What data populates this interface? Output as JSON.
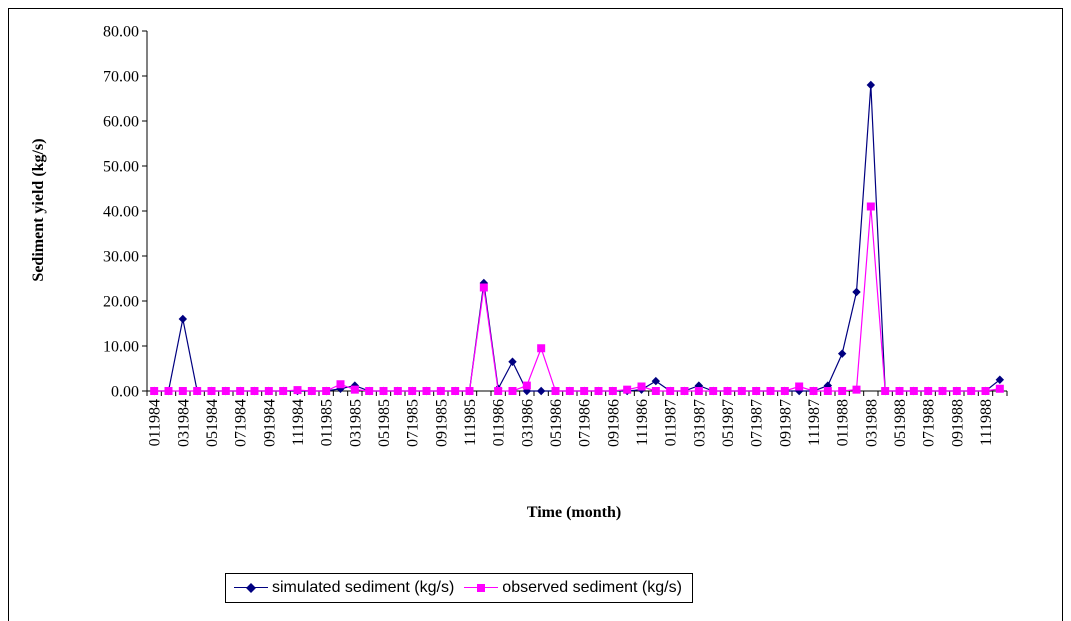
{
  "chart_data": {
    "type": "line",
    "xlabel": "Time (month)",
    "ylabel": "Sediment yield (kg/s)",
    "ylim": [
      0,
      80
    ],
    "yticks": [
      "0.00",
      "10.00",
      "20.00",
      "30.00",
      "40.00",
      "50.00",
      "60.00",
      "70.00",
      "80.00"
    ],
    "grid": false,
    "legend_position": "bottom",
    "x": [
      "011984",
      "021984",
      "031984",
      "041984",
      "051984",
      "061984",
      "071984",
      "081984",
      "091984",
      "101984",
      "111984",
      "121984",
      "011985",
      "021985",
      "031985",
      "041985",
      "051985",
      "061985",
      "071985",
      "081985",
      "091985",
      "101985",
      "111985",
      "121985",
      "011986",
      "021986",
      "031986",
      "041986",
      "051986",
      "061986",
      "071986",
      "081986",
      "091986",
      "101986",
      "111986",
      "121986",
      "011987",
      "021987",
      "031987",
      "041987",
      "051987",
      "061987",
      "071987",
      "081987",
      "091987",
      "101987",
      "111987",
      "121987",
      "011988",
      "021988",
      "031988",
      "041988",
      "051988",
      "061988",
      "071988",
      "081988",
      "091988",
      "101988",
      "111988",
      "121988"
    ],
    "x_tick_labels": [
      "011984",
      "031984",
      "051984",
      "071984",
      "091984",
      "111984",
      "011985",
      "031985",
      "051985",
      "071985",
      "091985",
      "111985",
      "011986",
      "031986",
      "051986",
      "071986",
      "091986",
      "111986",
      "011987",
      "031987",
      "051987",
      "071987",
      "091987",
      "111987",
      "011988",
      "031988",
      "051988",
      "071988",
      "091988",
      "111988"
    ],
    "series": [
      {
        "name": "simulated sediment (kg/s)",
        "color": "#000080",
        "marker": "diamond",
        "values": [
          0,
          0,
          16,
          0,
          0,
          0,
          0,
          0,
          0,
          0,
          0,
          0,
          0,
          0.5,
          1.2,
          0,
          0,
          0,
          0,
          0,
          0,
          0,
          0,
          24,
          0.5,
          6.5,
          0,
          0,
          0,
          0,
          0,
          0,
          0,
          0,
          0.3,
          2.2,
          0,
          0,
          1.2,
          0,
          0,
          0,
          0,
          0,
          0,
          0,
          0,
          1.2,
          8.3,
          22,
          68,
          0,
          0,
          0,
          0,
          0,
          0,
          0,
          0,
          2.5
        ]
      },
      {
        "name": "observed sediment (kg/s)",
        "color": "#ff00ff",
        "marker": "square",
        "values": [
          0,
          0,
          0,
          0,
          0,
          0,
          0,
          0,
          0,
          0,
          0.2,
          0,
          0,
          1.5,
          0.3,
          0,
          0,
          0,
          0,
          0,
          0,
          0,
          0,
          23,
          0,
          0,
          1.2,
          9.5,
          0,
          0,
          0,
          0,
          0,
          0.3,
          1,
          0,
          0,
          0,
          0,
          0,
          0,
          0,
          0,
          0,
          0,
          1,
          0,
          0,
          0,
          0.3,
          41,
          0,
          0,
          0,
          0,
          0,
          0,
          0,
          0,
          0.5
        ]
      }
    ]
  }
}
